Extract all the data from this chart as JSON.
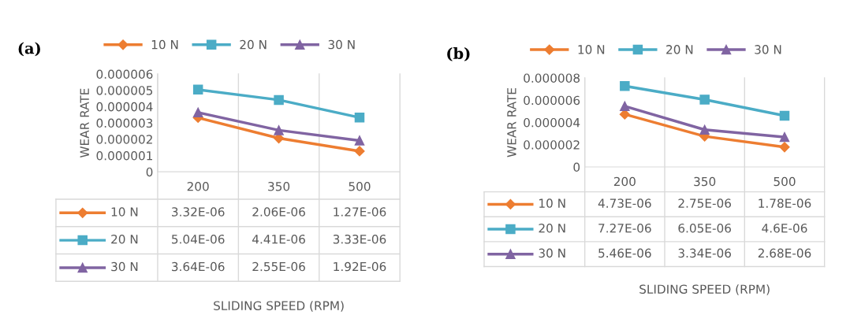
{
  "chart_data": [
    {
      "type": "line",
      "title": "(a)",
      "xlabel": "SLIDING SPEED (RPM)",
      "ylabel": "WEAR RATE",
      "categories": [
        "200",
        "350",
        "500"
      ],
      "ylim": [
        0,
        6e-06
      ],
      "yticks": [
        0,
        {
          "value": 1e-06,
          "label": "0.000001"
        },
        {
          "value": 2e-06,
          "label": "0.000002"
        },
        {
          "value": 3e-06,
          "label": "0.000003"
        },
        {
          "value": 4e-06,
          "label": "0.000004"
        },
        {
          "value": 5e-06,
          "label": "0.000005"
        },
        {
          "value": 6e-06,
          "label": "0.000006"
        }
      ],
      "legend": "top",
      "series": [
        {
          "name": "10 N",
          "color": "#ed7d31",
          "marker": "diamond",
          "values": [
            3.32e-06,
            2.06e-06,
            1.27e-06
          ],
          "value_labels": [
            "3.32E-06",
            "2.06E-06",
            "1.27E-06"
          ]
        },
        {
          "name": "20 N",
          "color": "#4bacc6",
          "marker": "square",
          "values": [
            5.04e-06,
            4.41e-06,
            3.33e-06
          ],
          "value_labels": [
            "5.04E-06",
            "4.41E-06",
            "3.33E-06"
          ]
        },
        {
          "name": "30 N",
          "color": "#8064a2",
          "marker": "triangle",
          "values": [
            3.64e-06,
            2.55e-06,
            1.92e-06
          ],
          "value_labels": [
            "3.64E-06",
            "2.55E-06",
            "1.92E-06"
          ]
        }
      ]
    },
    {
      "type": "line",
      "title": "(b)",
      "xlabel": "SLIDING SPEED (RPM)",
      "ylabel": "WEAR RATE",
      "categories": [
        "200",
        "350",
        "500"
      ],
      "ylim": [
        0,
        8e-06
      ],
      "yticks": [
        0,
        {
          "value": 2e-06,
          "label": "0.000002"
        },
        {
          "value": 4e-06,
          "label": "0.000004"
        },
        {
          "value": 6e-06,
          "label": "0.000006"
        },
        {
          "value": 8e-06,
          "label": "0.000008"
        }
      ],
      "legend": "top",
      "series": [
        {
          "name": "10 N",
          "color": "#ed7d31",
          "marker": "diamond",
          "values": [
            4.73e-06,
            2.75e-06,
            1.78e-06
          ],
          "value_labels": [
            "4.73E-06",
            "2.75E-06",
            "1.78E-06"
          ]
        },
        {
          "name": "20 N",
          "color": "#4bacc6",
          "marker": "square",
          "values": [
            7.27e-06,
            6.05e-06,
            4.6e-06
          ],
          "value_labels": [
            "7.27E-06",
            "6.05E-06",
            "4.6E-06"
          ]
        },
        {
          "name": "30 N",
          "color": "#8064a2",
          "marker": "triangle",
          "values": [
            5.46e-06,
            3.34e-06,
            2.68e-06
          ],
          "value_labels": [
            "5.46E-06",
            "3.34E-06",
            "2.68E-06"
          ]
        }
      ]
    }
  ]
}
